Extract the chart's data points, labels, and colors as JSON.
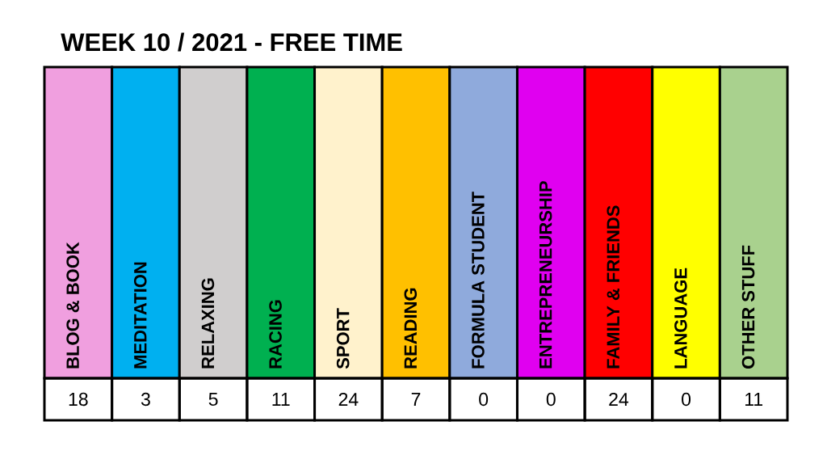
{
  "chart_data": {
    "type": "other",
    "title": "WEEK 10 / 2021 - FREE TIME",
    "categories": [
      "BLOG & BOOK",
      "MEDITATION",
      "RELAXING",
      "RACING",
      "SPORT",
      "READING",
      "FORMULA STUDENT",
      "ENTREPRENEURSHIP",
      "FAMILY & FRIENDS",
      "LANGUAGE",
      "OTHER STUFF"
    ],
    "values": [
      18,
      3,
      5,
      11,
      24,
      7,
      0,
      0,
      24,
      0,
      11
    ],
    "colors": [
      "#f09fdf",
      "#00b0f0",
      "#d0cece",
      "#00b050",
      "#fff2cc",
      "#ffc000",
      "#8faadc",
      "#e000f0",
      "#ff0000",
      "#ffff00",
      "#a9d18e"
    ],
    "data_labels": true
  }
}
